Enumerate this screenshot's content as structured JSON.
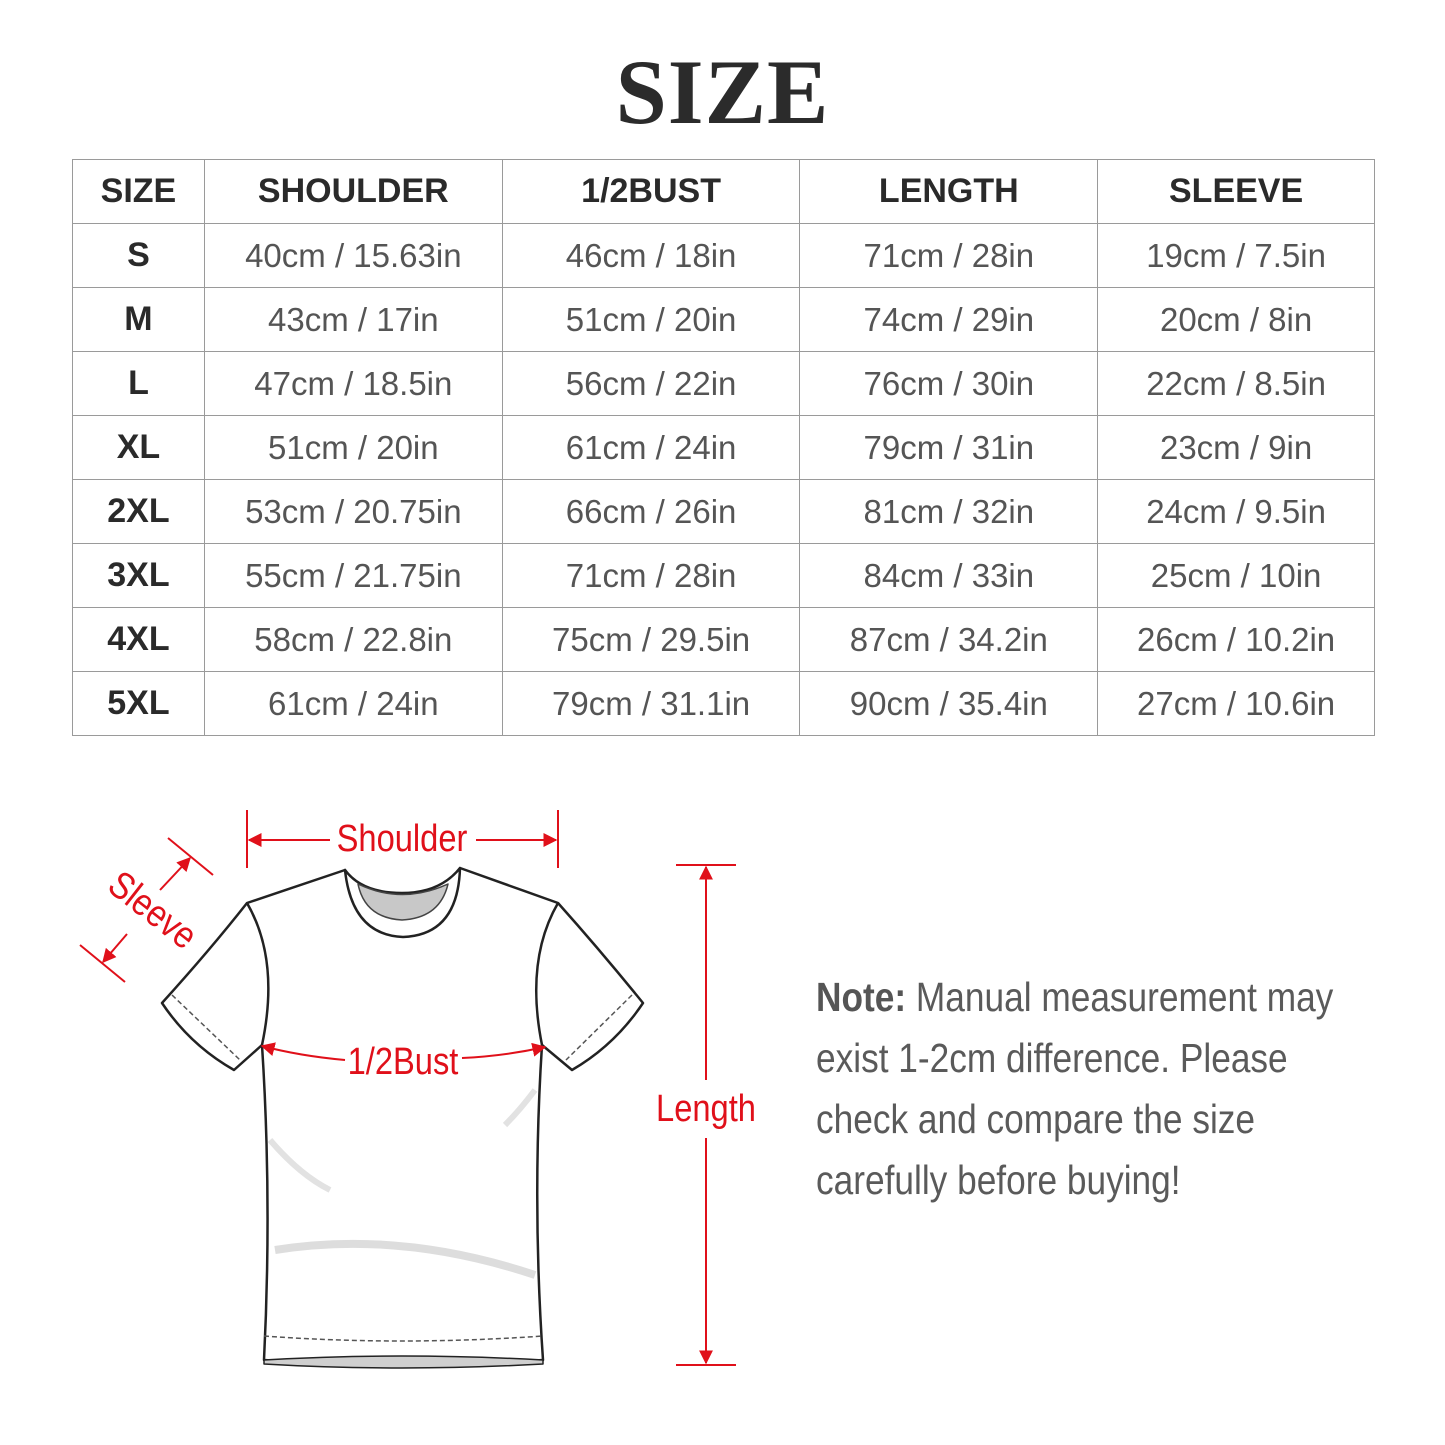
{
  "title": "SIZE",
  "table": {
    "headers": [
      "SIZE",
      "SHOULDER",
      "1/2BUST",
      "LENGTH",
      "SLEEVE"
    ],
    "rows": [
      [
        "S",
        "40cm / 15.63in",
        "46cm / 18in",
        "71cm / 28in",
        "19cm / 7.5in"
      ],
      [
        "M",
        "43cm / 17in",
        "51cm / 20in",
        "74cm / 29in",
        "20cm / 8in"
      ],
      [
        "L",
        "47cm / 18.5in",
        "56cm / 22in",
        "76cm / 30in",
        "22cm / 8.5in"
      ],
      [
        "XL",
        "51cm / 20in",
        "61cm / 24in",
        "79cm / 31in",
        "23cm / 9in"
      ],
      [
        "2XL",
        "53cm / 20.75in",
        "66cm / 26in",
        "81cm / 32in",
        "24cm / 9.5in"
      ],
      [
        "3XL",
        "55cm / 21.75in",
        "71cm / 28in",
        "84cm / 33in",
        "25cm / 10in"
      ],
      [
        "4XL",
        "58cm / 22.8in",
        "75cm / 29.5in",
        "87cm / 34.2in",
        "26cm / 10.2in"
      ],
      [
        "5XL",
        "61cm / 24in",
        "79cm / 31.1in",
        "90cm / 35.4in",
        "27cm / 10.6in"
      ]
    ]
  },
  "diagram": {
    "shoulder_label": "Shoulder",
    "sleeve_label": "Sleeve",
    "bust_label": "1/2Bust",
    "length_label": "Length",
    "accent_color": "#e0101a",
    "icon": "t-shirt-outline"
  },
  "note": {
    "label": "Note:",
    "text": " Manual measurement may exist 1-2cm difference. Please check and compare the size carefully before buying!"
  }
}
